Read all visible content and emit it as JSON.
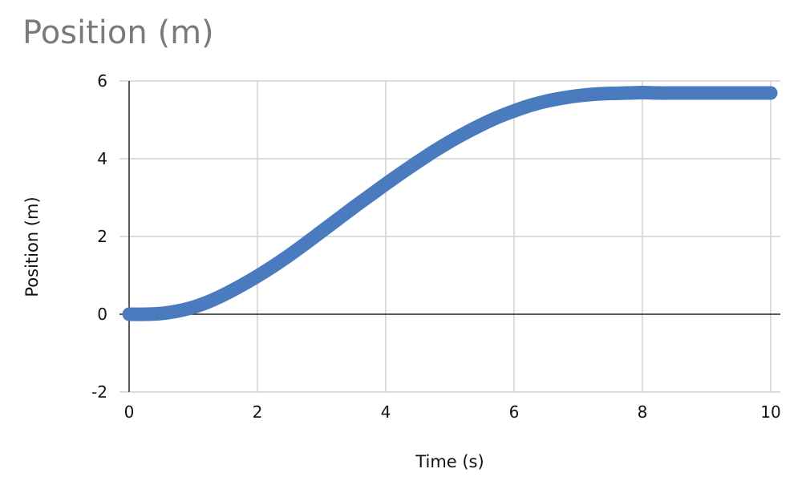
{
  "chart_data": {
    "type": "line",
    "title": "Position (m)",
    "xlabel": "Time (s)",
    "ylabel": "Position (m)",
    "xlim": [
      0,
      10
    ],
    "ylim": [
      -2,
      6
    ],
    "x_ticks": [
      0,
      2,
      4,
      6,
      8,
      10
    ],
    "y_ticks": [
      -2,
      0,
      2,
      4,
      6
    ],
    "grid": true,
    "legend": "none",
    "series": [
      {
        "color": "#4a7bbf",
        "x": [
          0,
          0.25,
          0.5,
          0.75,
          1,
          1.25,
          1.5,
          1.75,
          2,
          2.25,
          2.5,
          2.75,
          3,
          3.25,
          3.5,
          3.75,
          4,
          4.25,
          4.5,
          4.75,
          5,
          5.25,
          5.5,
          5.75,
          6,
          6.25,
          6.5,
          6.75,
          7,
          7.25,
          7.5,
          7.75,
          8,
          8.25,
          8.5,
          8.75,
          9,
          9.25,
          9.5,
          9.75,
          10
        ],
        "y": [
          0,
          0,
          0.02,
          0.08,
          0.18,
          0.33,
          0.52,
          0.74,
          0.98,
          1.24,
          1.52,
          1.82,
          2.13,
          2.44,
          2.75,
          3.05,
          3.35,
          3.64,
          3.92,
          4.19,
          4.44,
          4.67,
          4.88,
          5.07,
          5.23,
          5.37,
          5.48,
          5.56,
          5.62,
          5.66,
          5.68,
          5.69,
          5.7,
          5.69,
          5.69,
          5.69,
          5.69,
          5.69,
          5.69,
          5.69,
          5.69
        ]
      }
    ]
  }
}
